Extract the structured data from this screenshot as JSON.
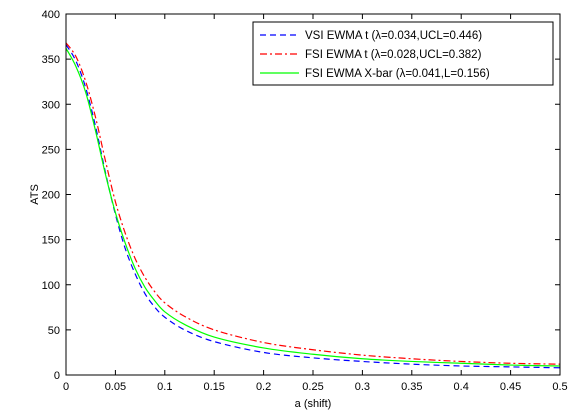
{
  "chart_data": {
    "type": "line",
    "xlabel": "a (shift)",
    "ylabel": "ATS",
    "xlim": [
      0,
      0.5
    ],
    "ylim": [
      0,
      400
    ],
    "xticks": [
      "0",
      "0.05",
      "0.1",
      "0.15",
      "0.2",
      "0.25",
      "0.3",
      "0.35",
      "0.4",
      "0.45",
      "0.5"
    ],
    "yticks": [
      "0",
      "50",
      "100",
      "150",
      "200",
      "250",
      "300",
      "350",
      "400"
    ],
    "grid": false,
    "legend_position": "top-right",
    "x": [
      0,
      0.01,
      0.02,
      0.03,
      0.04,
      0.05,
      0.06,
      0.07,
      0.08,
      0.09,
      0.1,
      0.12,
      0.15,
      0.2,
      0.25,
      0.3,
      0.35,
      0.4,
      0.45,
      0.5
    ],
    "series": [
      {
        "name": "VSI EWMA t (λ=0.034,UCL=0.446)",
        "color": "#0000ff",
        "dash": "dashed",
        "values": [
          366,
          348,
          318,
          275,
          224,
          178,
          140,
          112,
          90,
          75,
          64,
          50,
          37,
          25,
          19,
          15,
          12,
          10,
          9,
          8
        ]
      },
      {
        "name": "FSI EWMA t (λ=0.028,UCL=0.382)",
        "color": "#ff0000",
        "dash": "dashdot",
        "values": [
          368,
          353,
          325,
          285,
          237,
          192,
          157,
          129,
          108,
          92,
          80,
          65,
          50,
          36,
          28,
          22,
          18,
          15,
          13,
          12
        ]
      },
      {
        "name": "FSI EWMA X-bar (λ=0.041,L=0.156)",
        "color": "#00ff00",
        "dash": "solid",
        "values": [
          362,
          342,
          313,
          270,
          222,
          180,
          146,
          118,
          97,
          82,
          70,
          56,
          42,
          30,
          23,
          18,
          15,
          13,
          11,
          10
        ]
      }
    ]
  }
}
